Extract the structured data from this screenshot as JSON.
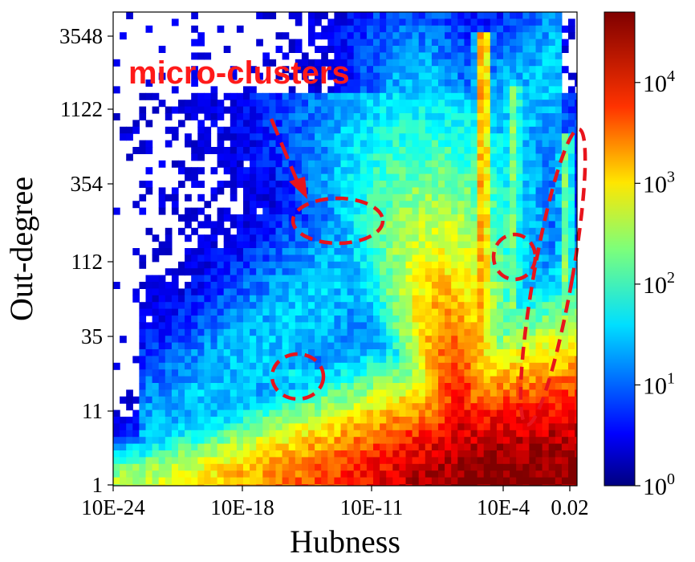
{
  "chart_data": {
    "type": "heatmap",
    "title": "",
    "xlabel": "Hubness",
    "ylabel": "Out-degree",
    "x_scale": "log",
    "y_scale": "log",
    "xticks": [
      "10E-24",
      "10E-18",
      "10E-11",
      "10E-4",
      "0.02"
    ],
    "yticks": [
      "1",
      "11",
      "35",
      "112",
      "354",
      "1122",
      "3548"
    ],
    "colorbar": {
      "scale": "log",
      "range": [
        1,
        50000
      ],
      "ticks": [
        {
          "base": "10",
          "exp": "0",
          "value": 1
        },
        {
          "base": "10",
          "exp": "1",
          "value": 10
        },
        {
          "base": "10",
          "exp": "2",
          "value": 100
        },
        {
          "base": "10",
          "exp": "3",
          "value": 1000
        },
        {
          "base": "10",
          "exp": "4",
          "value": 10000
        }
      ],
      "colormap": "jet"
    },
    "annotations": [
      {
        "text": "micro-clusters",
        "color": "#ff1a1a"
      }
    ],
    "highlight_color": "#e8141c",
    "density_regions": [
      {
        "hubness": "10E-4 to 0.001",
        "out_degree": "1 to 3548",
        "level": "peak"
      },
      {
        "hubness": "10E-11 to 10E-5",
        "out_degree": "1 to 11",
        "level": "high"
      },
      {
        "hubness": "10E-18",
        "out_degree": "1 to 35",
        "level": "medium"
      },
      {
        "hubness": "10E-14 to 10E-12",
        "out_degree": "about 230",
        "level": "micro-cluster"
      },
      {
        "hubness": "10E-15",
        "out_degree": "about 20",
        "level": "micro-cluster"
      },
      {
        "hubness": "0.001",
        "out_degree": "about 112",
        "level": "micro-cluster"
      },
      {
        "hubness": "0.02",
        "out_degree": "11 to 1122",
        "level": "micro-cluster"
      }
    ]
  }
}
